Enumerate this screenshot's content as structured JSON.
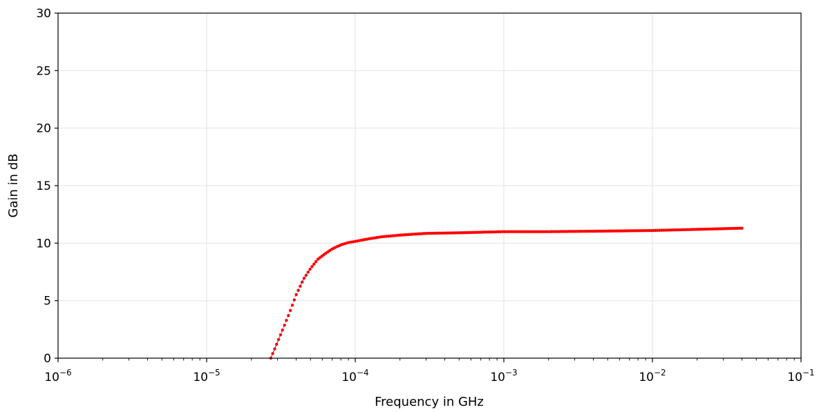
{
  "chart_data": {
    "type": "line",
    "title": "",
    "xlabel": "Frequency in GHz",
    "ylabel": "Gain in dB",
    "xscale": "log",
    "xlim": [
      1e-06,
      0.1
    ],
    "ylim": [
      0,
      30
    ],
    "grid": true,
    "x_ticks": [
      {
        "value": 1e-06,
        "base": "10",
        "exp": "−6"
      },
      {
        "value": 1e-05,
        "base": "10",
        "exp": "−5"
      },
      {
        "value": 0.0001,
        "base": "10",
        "exp": "−4"
      },
      {
        "value": 0.001,
        "base": "10",
        "exp": "−3"
      },
      {
        "value": 0.01,
        "base": "10",
        "exp": "−2"
      },
      {
        "value": 0.1,
        "base": "10",
        "exp": "−1"
      }
    ],
    "y_ticks": [
      {
        "value": 0,
        "label": "0"
      },
      {
        "value": 5,
        "label": "5"
      },
      {
        "value": 10,
        "label": "10"
      },
      {
        "value": 15,
        "label": "15"
      },
      {
        "value": 20,
        "label": "20"
      },
      {
        "value": 25,
        "label": "25"
      },
      {
        "value": 30,
        "label": "30"
      }
    ],
    "series": [
      {
        "style": "dashed-line-with-markers",
        "line_color": "#1f77b4",
        "marker_color": "#ff0000",
        "x": [
          2.7e-05,
          3e-05,
          3.3e-05,
          3.6e-05,
          4e-05,
          4.5e-05,
          5e-05,
          5.6e-05,
          6.3e-05,
          7e-05,
          8e-05,
          9e-05,
          0.0001,
          0.00012,
          0.00015,
          0.0002,
          0.0003,
          0.0005,
          0.001,
          0.002,
          0.005,
          0.01,
          0.02,
          0.04
        ],
        "y": [
          0.0,
          1.4,
          2.7,
          3.9,
          5.5,
          6.9,
          7.8,
          8.6,
          9.1,
          9.5,
          9.85,
          10.05,
          10.15,
          10.35,
          10.55,
          10.7,
          10.85,
          10.9,
          11.0,
          11.0,
          11.05,
          11.1,
          11.2,
          11.3
        ]
      }
    ]
  }
}
